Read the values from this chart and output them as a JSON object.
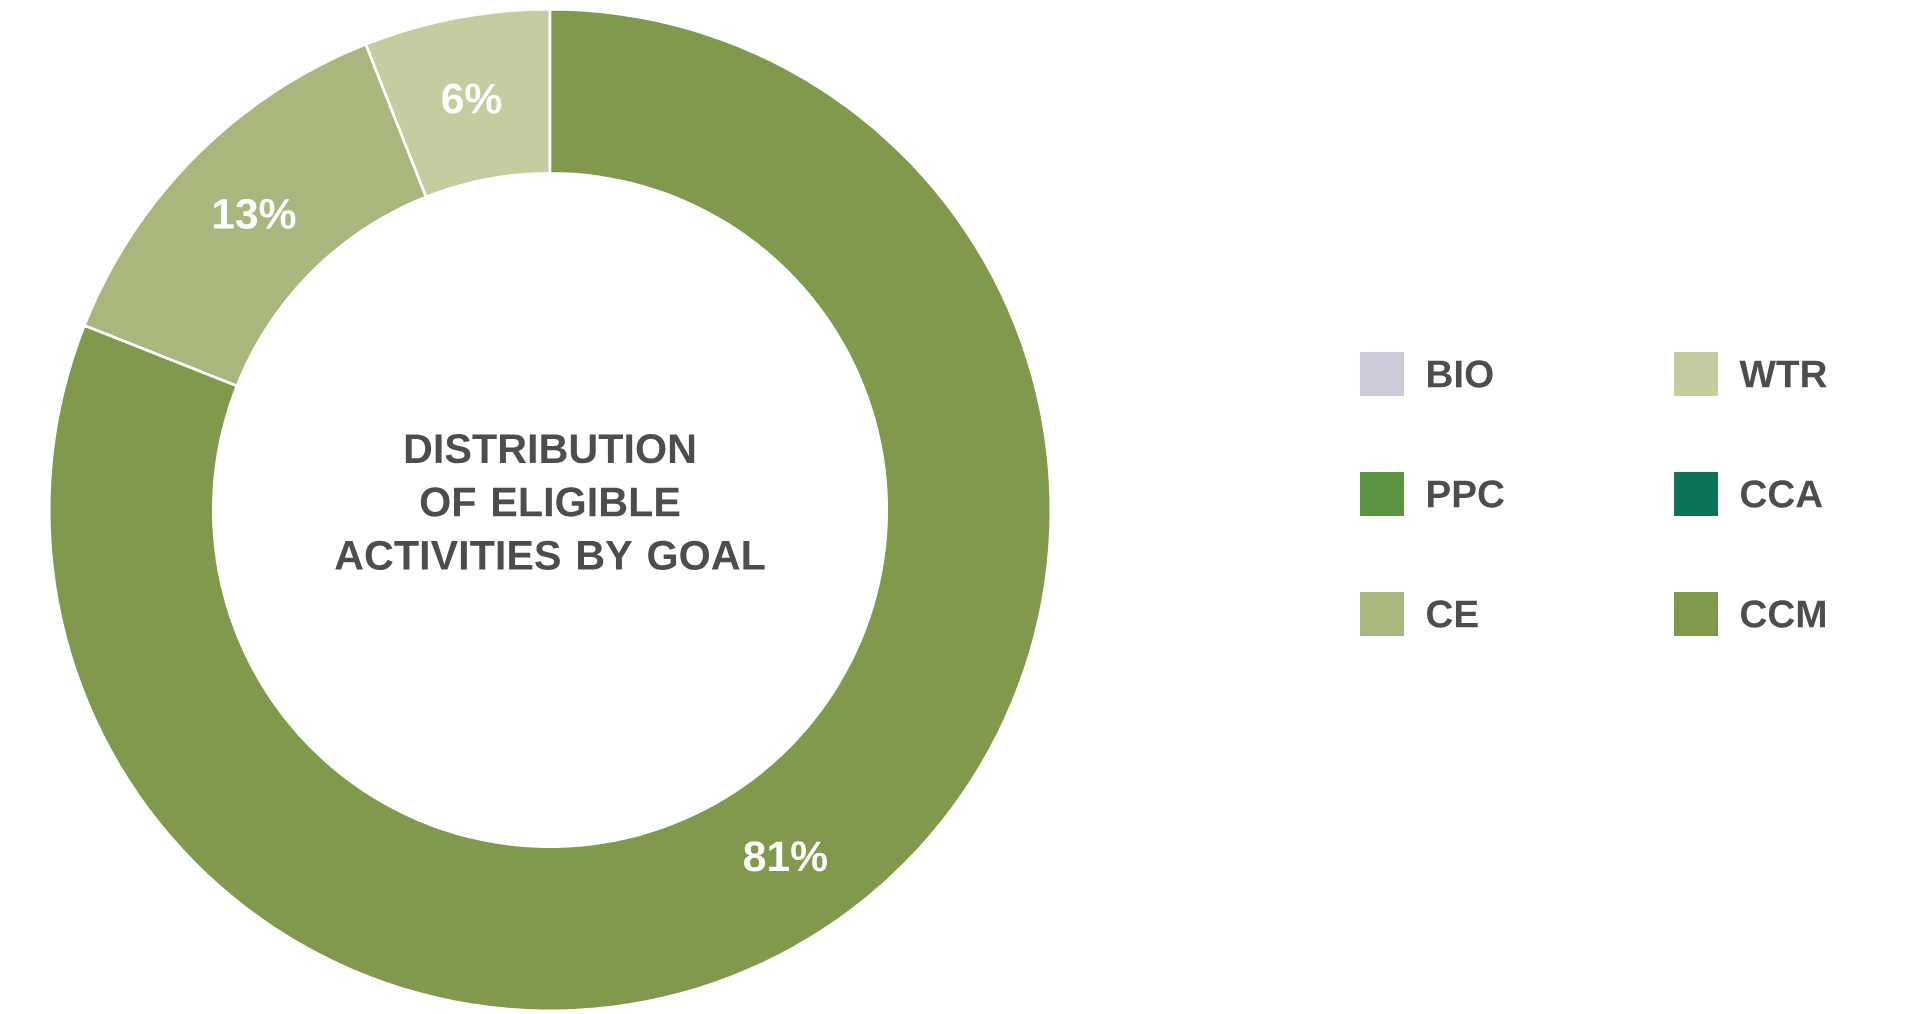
{
  "chart_data": {
    "type": "donut",
    "title": "DISTRIBUTION OF ELIGIBLE ACTIVITIES BY GOAL",
    "categories": [
      "BIO",
      "WTR",
      "PPC",
      "CCA",
      "CE",
      "CCM"
    ],
    "values": [
      0,
      6,
      0,
      0,
      13,
      81
    ],
    "colors": [
      "#cccad6",
      "#c5cca0",
      "#5a9440",
      "#0c7358",
      "#a9b77e",
      "#81994c"
    ],
    "value_labels": [
      null,
      "6%",
      null,
      null,
      "13%",
      "81%"
    ],
    "legend": "right"
  }
}
